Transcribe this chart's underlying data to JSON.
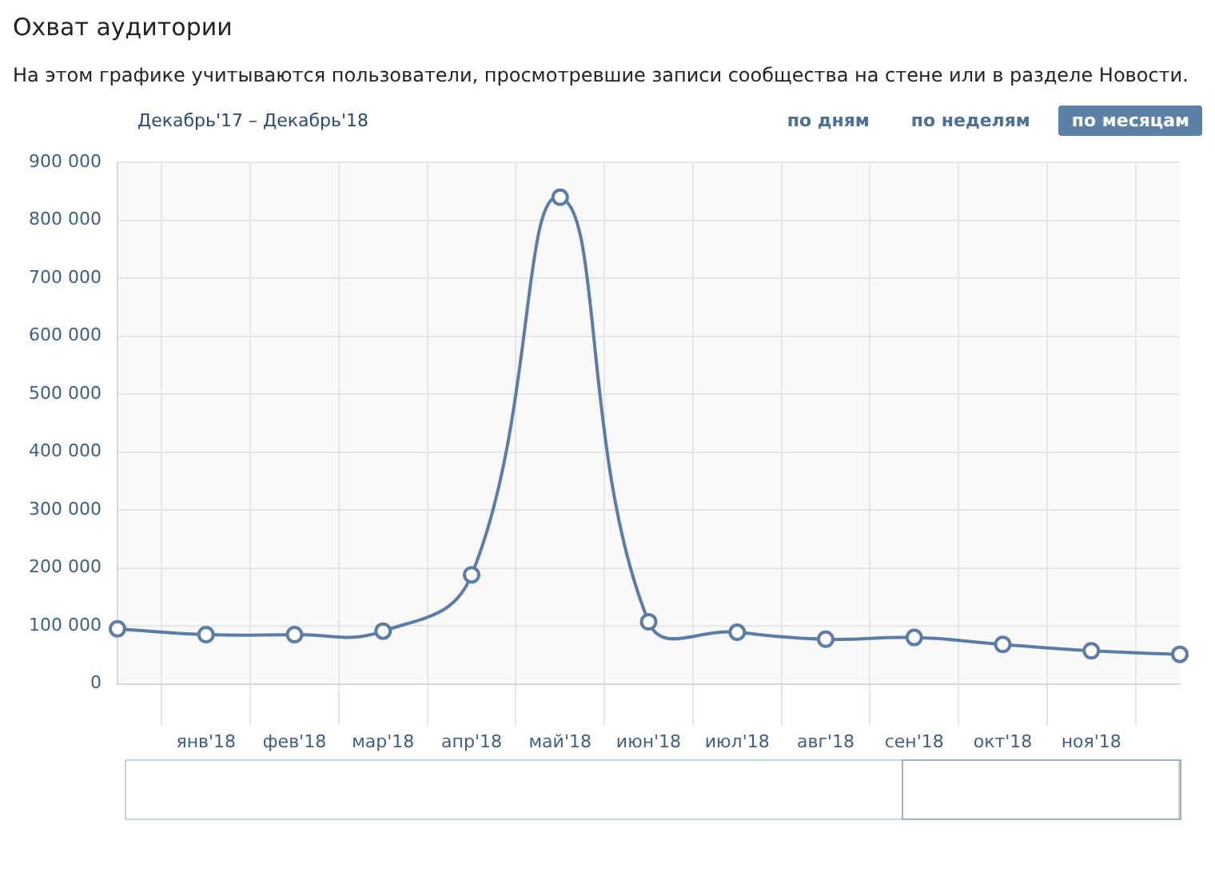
{
  "chart_data": {
    "type": "line",
    "title": "Охват аудитории",
    "subtitle": "На этом графике учитываются пользователи, просмотревшие записи сообщества на стене или в разделе Новости.",
    "annotations": [
      "Декабрь'17 – Декабрь'18",
      "по дням",
      "по неделям",
      "по месяцам"
    ],
    "categories": [
      null,
      "янв'18",
      "фев'18",
      "мар'18",
      "апр'18",
      "май'18",
      "июн'18",
      "июл'18",
      "авг'18",
      "сен'18",
      "окт'18",
      "ноя'18",
      null
    ],
    "series": [
      {
        "color": "#5a7ca6",
        "values": [
          95000,
          85000,
          85000,
          91000,
          188000,
          840000,
          107000,
          89000,
          77000,
          80000,
          68000,
          57000,
          51000
        ]
      }
    ],
    "ylim": [
      0,
      900000
    ],
    "yticks": [
      {
        "value": 0,
        "label": "0"
      },
      {
        "value": 100000,
        "label": "100 000"
      },
      {
        "value": 200000,
        "label": "200 000"
      },
      {
        "value": 300000,
        "label": "300 000"
      },
      {
        "value": 400000,
        "label": "400 000"
      },
      {
        "value": 500000,
        "label": "500 000"
      },
      {
        "value": 600000,
        "label": "600 000"
      },
      {
        "value": 700000,
        "label": "700 000"
      },
      {
        "value": 800000,
        "label": "800 000"
      },
      {
        "value": 900000,
        "label": "900 000"
      }
    ],
    "grid": true,
    "marker": "circle",
    "line_style": "solid",
    "legend": false
  }
}
